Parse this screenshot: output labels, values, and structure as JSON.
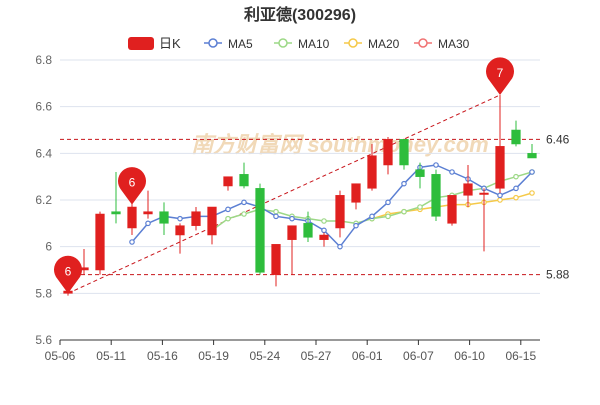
{
  "chart_data": {
    "type": "candlestick",
    "title": "利亚德(300296)",
    "ylim": [
      5.6,
      6.8
    ],
    "y_ticks": [
      "5.6",
      "5.8",
      "6",
      "6.2",
      "6.4",
      "6.6",
      "6.8"
    ],
    "x_ticks": [
      "05-06",
      "05-11",
      "05-16",
      "05-19",
      "05-24",
      "05-27",
      "06-01",
      "06-07",
      "06-10",
      "06-15"
    ],
    "legend": [
      {
        "label": "日K",
        "color": "#e0201f",
        "kind": "candle"
      },
      {
        "label": "MA5",
        "color": "#5b7fd3",
        "kind": "line"
      },
      {
        "label": "MA10",
        "color": "#9cd886",
        "kind": "line"
      },
      {
        "label": "MA20",
        "color": "#f5c948",
        "kind": "line"
      },
      {
        "label": "MA30",
        "color": "#f07272",
        "kind": "line"
      }
    ],
    "colors": {
      "up": "#e0201f",
      "down": "#2ebd3c",
      "marker": "#e0201f",
      "refline": "#c8151b",
      "grid": "#dde3ee"
    },
    "candles": [
      {
        "o": 5.8,
        "h": 5.82,
        "l": 5.79,
        "c": 5.81
      },
      {
        "o": 5.9,
        "h": 5.99,
        "l": 5.88,
        "c": 5.91
      },
      {
        "o": 5.9,
        "h": 6.15,
        "l": 5.88,
        "c": 6.14
      },
      {
        "o": 6.15,
        "h": 6.32,
        "l": 6.1,
        "c": 6.14
      },
      {
        "o": 6.08,
        "h": 6.2,
        "l": 6.05,
        "c": 6.17
      },
      {
        "o": 6.14,
        "h": 6.24,
        "l": 6.12,
        "c": 6.15
      },
      {
        "o": 6.15,
        "h": 6.19,
        "l": 6.05,
        "c": 6.1
      },
      {
        "o": 6.05,
        "h": 6.1,
        "l": 5.97,
        "c": 6.09
      },
      {
        "o": 6.09,
        "h": 6.17,
        "l": 6.07,
        "c": 6.15
      },
      {
        "o": 6.05,
        "h": 6.17,
        "l": 6.01,
        "c": 6.17
      },
      {
        "o": 6.26,
        "h": 6.3,
        "l": 6.24,
        "c": 6.3
      },
      {
        "o": 6.31,
        "h": 6.36,
        "l": 6.25,
        "c": 6.26
      },
      {
        "o": 6.25,
        "h": 6.27,
        "l": 5.88,
        "c": 5.89
      },
      {
        "o": 5.88,
        "h": 6.01,
        "l": 5.83,
        "c": 6.01
      },
      {
        "o": 6.03,
        "h": 6.09,
        "l": 5.88,
        "c": 6.09
      },
      {
        "o": 6.1,
        "h": 6.15,
        "l": 6.02,
        "c": 6.04
      },
      {
        "o": 6.03,
        "h": 6.06,
        "l": 6.0,
        "c": 6.05
      },
      {
        "o": 6.08,
        "h": 6.24,
        "l": 6.04,
        "c": 6.22
      },
      {
        "o": 6.19,
        "h": 6.27,
        "l": 6.16,
        "c": 6.27
      },
      {
        "o": 6.25,
        "h": 6.44,
        "l": 6.24,
        "c": 6.39
      },
      {
        "o": 6.35,
        "h": 6.47,
        "l": 6.31,
        "c": 6.46
      },
      {
        "o": 6.46,
        "h": 6.46,
        "l": 6.33,
        "c": 6.35
      },
      {
        "o": 6.33,
        "h": 6.36,
        "l": 6.25,
        "c": 6.3
      },
      {
        "o": 6.31,
        "h": 6.33,
        "l": 6.11,
        "c": 6.13
      },
      {
        "o": 6.1,
        "h": 6.22,
        "l": 6.09,
        "c": 6.22
      },
      {
        "o": 6.22,
        "h": 6.35,
        "l": 6.17,
        "c": 6.27
      },
      {
        "o": 6.23,
        "h": 6.25,
        "l": 5.98,
        "c": 6.23
      },
      {
        "o": 6.25,
        "h": 6.65,
        "l": 6.23,
        "c": 6.43
      },
      {
        "o": 6.5,
        "h": 6.54,
        "l": 6.43,
        "c": 6.44
      },
      {
        "o": 6.4,
        "h": 6.44,
        "l": 6.38,
        "c": 6.38
      }
    ],
    "ma5": [
      null,
      null,
      null,
      null,
      6.02,
      6.1,
      6.13,
      6.12,
      6.13,
      6.13,
      6.16,
      6.19,
      6.17,
      6.13,
      6.12,
      6.11,
      6.07,
      6.0,
      6.09,
      6.13,
      6.19,
      6.27,
      6.34,
      6.35,
      6.32,
      6.29,
      6.25,
      6.22,
      6.25,
      6.32
    ],
    "ma10": [
      null,
      null,
      null,
      null,
      null,
      null,
      null,
      null,
      null,
      6.07,
      6.12,
      6.14,
      6.16,
      6.15,
      6.13,
      6.12,
      6.11,
      6.11,
      6.1,
      6.12,
      6.13,
      6.15,
      6.17,
      6.21,
      6.22,
      6.24,
      6.25,
      6.28,
      6.3,
      6.32
    ],
    "ma20": [
      null,
      null,
      null,
      null,
      null,
      null,
      null,
      null,
      null,
      null,
      null,
      null,
      null,
      null,
      null,
      null,
      null,
      null,
      null,
      6.12,
      6.14,
      6.15,
      6.16,
      6.17,
      6.18,
      6.18,
      6.19,
      6.2,
      6.21,
      6.23
    ],
    "markers": [
      {
        "label": "6",
        "index": 0,
        "value": 5.8
      },
      {
        "label": "6",
        "index": 4,
        "value": 6.18
      },
      {
        "label": "7",
        "index": 27,
        "value": 6.65
      }
    ],
    "ref_lines": [
      {
        "value": 6.46,
        "label": "6.46"
      },
      {
        "value": 5.88,
        "label": "5.88"
      }
    ],
    "trend_line": {
      "from": {
        "index": 0,
        "value": 5.8
      },
      "to": {
        "index": 27,
        "value": 6.65
      }
    },
    "watermark": "南方财富网 southmoney.com",
    "grid": true
  }
}
